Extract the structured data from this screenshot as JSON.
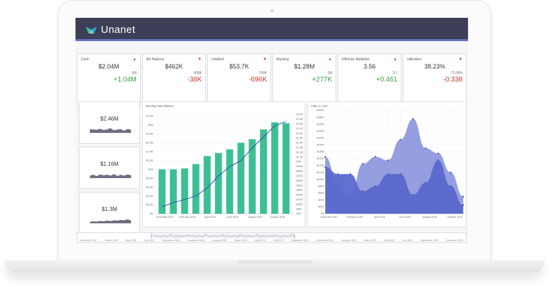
{
  "app": {
    "name": "Unanet"
  },
  "kpis": [
    {
      "label": "Cash",
      "value": "$2.04M",
      "ref": "0M",
      "delta": "+1.04M",
      "trend": "up"
    },
    {
      "label": "AR Balance",
      "value": "$462K",
      "ref": "500K",
      "delta": "-38K",
      "trend": "down"
    },
    {
      "label": "Unbilled",
      "value": "$53.7K",
      "ref": "750K",
      "delta": "-696K",
      "trend": "down"
    },
    {
      "label": "Backlog",
      "value": "$1.28M",
      "ref": "1M",
      "delta": "+277K",
      "trend": "up"
    },
    {
      "label": "Effective Multiplier",
      "value": "3.56",
      "ref": "3.1",
      "delta": "+0.461",
      "trend": "up"
    },
    {
      "label": "Utilization",
      "value": "38.23%",
      "ref": "72.00%",
      "delta": "-0.338",
      "trend": "down"
    }
  ],
  "colors": {
    "up": "#3a9a48",
    "down": "#c0392b",
    "bar": "#3cbf94",
    "line": "#2e4aa8",
    "area_light": "#8f99dd",
    "area_dark": "#5a68cc",
    "header": "#3d3f58"
  },
  "tabs": [
    "Cash",
    "Running AR",
    "Unbilled",
    "Backlog",
    "Utilization"
  ],
  "mini_cards": [
    {
      "value": "$2.46M",
      "sparkline": [
        0.55,
        0.5,
        0.48,
        0.6,
        0.42,
        0.5,
        0.7,
        0.38,
        0.5,
        0.55,
        0.3,
        0.6,
        0.45
      ]
    },
    {
      "value": "$1.16M",
      "sparkline": [
        0.35,
        0.5,
        0.3,
        0.55,
        0.4,
        0.5,
        0.35,
        0.6,
        0.3,
        0.5,
        0.35,
        0.55,
        0.4
      ]
    },
    {
      "value": "$1.3M",
      "sparkline": [
        0.2,
        0.3,
        0.25,
        0.35,
        0.3,
        0.4,
        0.32,
        0.45,
        0.4,
        0.5,
        0.45,
        0.6,
        0.4
      ]
    }
  ],
  "range_labels": [
    "December 2017",
    "March 2018",
    "May 2018",
    "July 2018",
    "September 2018",
    "November 2018",
    "January 2019",
    "March 2019",
    "May 2019",
    "July 2019",
    "September 2019",
    "November 2019",
    "January 2020",
    "March 2020",
    "May 2020",
    "July 2020",
    "September 2020",
    "December 2020"
  ],
  "chart_data": [
    {
      "type": "bar",
      "title": "Running Cash Balance",
      "categories": [
        "December 2017",
        "January 2018",
        "February 2018",
        "March 2018",
        "April 2018",
        "May 2018",
        "June 2018",
        "July 2018",
        "August 2018",
        "September 2018",
        "October 2018",
        "November 2018"
      ],
      "x_tick_labels": [
        "December 2017",
        "February 2018",
        "April 2018",
        "June 2018",
        "August 2018",
        "October 2018"
      ],
      "y_tick_labels": [
        "$0",
        "$0.2M",
        "$0.4M",
        "$0.6M",
        "$0.8M",
        "$1M",
        "$1.2M",
        "$1.4M",
        "$1.6M",
        "$1.8M",
        "$2M",
        "$2.2M"
      ],
      "y2_tick_labels": [
        "$0M",
        "$90K",
        "$180K",
        "$270K",
        "$360K",
        "$450K",
        "$540K",
        "$630K",
        "$720K",
        "$810K",
        "$900K",
        "$1M",
        "$1.1M",
        "$1.2M",
        "$1.3M",
        "$1.4M",
        "$1.5M",
        "$1.6M",
        "$1.7M",
        "$1.8M",
        "$1.9M",
        "$2.0M"
      ],
      "ylim": [
        0,
        2.3
      ],
      "series": [
        {
          "values": [
            1.0,
            1.0,
            1.02,
            1.12,
            1.3,
            1.37,
            1.45,
            1.6,
            1.68,
            1.9,
            2.06,
            2.04
          ]
        },
        {
          "type": "line",
          "values": [
            0.16,
            0.25,
            0.32,
            0.4,
            0.58,
            0.85,
            1.06,
            1.2,
            1.48,
            1.73,
            1.98,
            2.08
          ]
        }
      ]
    },
    {
      "type": "area",
      "title": "Cash In / Out",
      "x_tick_labels": [
        "December 2017",
        "February 2018",
        "April 2018",
        "June 2018",
        "August 2018",
        "October 2018"
      ],
      "y_tick_labels": [
        "$0",
        "$20K",
        "$40K",
        "$60K",
        "$80K",
        "$100K",
        "$120K",
        "$140K",
        "$160K",
        "$180K",
        "$200K",
        "$220K",
        "$240K",
        "$260K",
        "$280K",
        "$300K"
      ],
      "ylim": [
        0,
        300
      ],
      "series": [
        {
          "values": [
            165,
            90,
            50,
            145,
            165,
            155,
            215,
            275,
            190,
            175,
            120,
            50
          ]
        },
        {
          "values": [
            135,
            115,
            115,
            65,
            80,
            115,
            115,
            55,
            90,
            155,
            80,
            25
          ]
        }
      ]
    }
  ]
}
